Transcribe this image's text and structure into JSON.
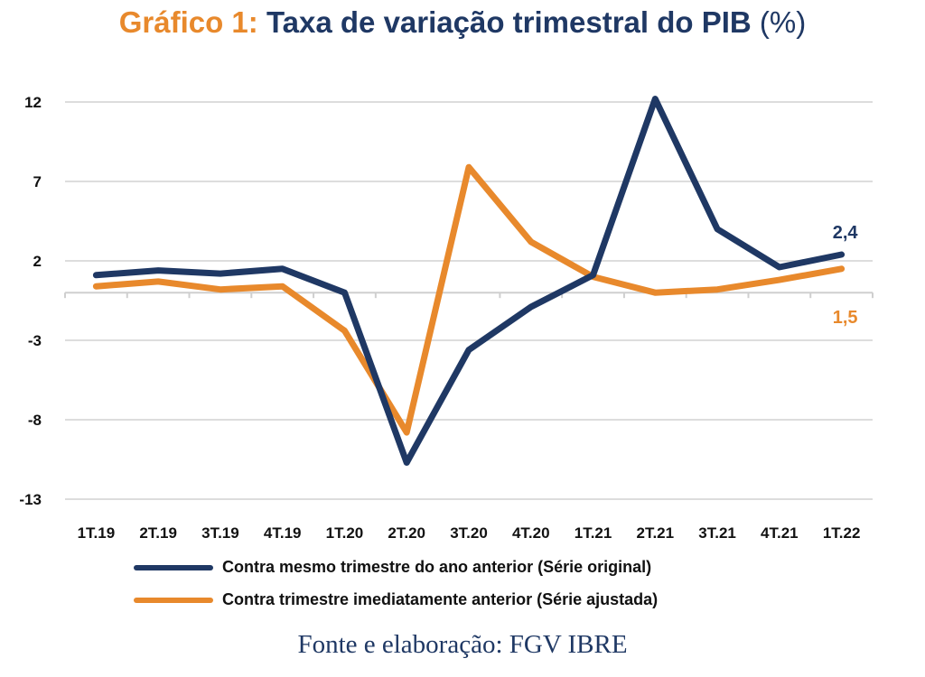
{
  "title": {
    "prefix": "Gráfico 1:",
    "main": "Taxa de variação trimestral do PIB",
    "unit": "(%)"
  },
  "source": "Fonte e elaboração: FGV IBRE",
  "colors": {
    "series_original": "#1F3864",
    "series_ajustada": "#E8892C",
    "grid": "#dddddd"
  },
  "chart_data": {
    "type": "line",
    "title": "Taxa de variação trimestral do PIB (%)",
    "categories": [
      "1T.19",
      "2T.19",
      "3T.19",
      "4T.19",
      "1T.20",
      "2T.20",
      "3T.20",
      "4T.20",
      "1T.21",
      "2T.21",
      "3T.21",
      "4T.21",
      "1T.22"
    ],
    "y_ticks": [
      "12",
      "7",
      "2",
      "-3",
      "-8",
      "-13"
    ],
    "ylim": [
      -13,
      12
    ],
    "grid": "horizontal",
    "legend_position": "bottom",
    "series": [
      {
        "name": "Contra mesmo trimestre do ano anterior (Série original)",
        "color": "#1F3864",
        "values": [
          1.1,
          1.4,
          1.2,
          1.5,
          0.0,
          -10.7,
          -3.6,
          -0.9,
          1.1,
          12.2,
          4.0,
          1.6,
          2.4
        ],
        "end_label": "2,4"
      },
      {
        "name": "Contra trimestre imediatamente anterior (Série ajustada)",
        "color": "#E8892C",
        "values": [
          0.4,
          0.7,
          0.2,
          0.4,
          -2.4,
          -8.8,
          7.9,
          3.2,
          1.0,
          0.0,
          0.2,
          0.8,
          1.5
        ],
        "end_label": "1,5"
      }
    ]
  }
}
